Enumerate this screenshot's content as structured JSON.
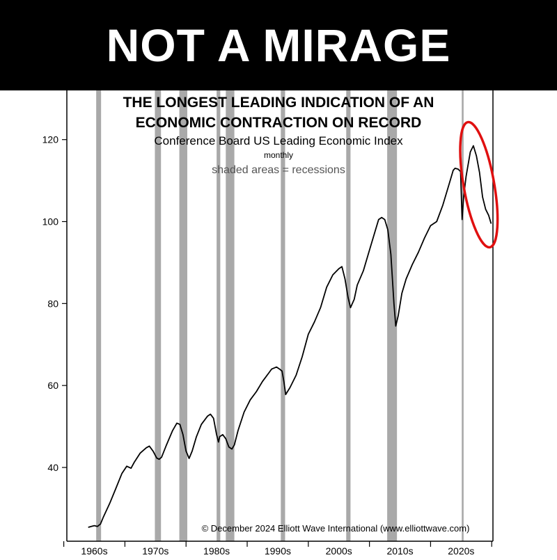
{
  "banner": {
    "text": "NOT A MIRAGE"
  },
  "colors": {
    "banner_bg": "#000000",
    "banner_text": "#ffffff",
    "line": "#000000",
    "recession_shading": "#a9a9a9",
    "highlight_circle": "#e01010"
  },
  "chart_data": {
    "type": "line",
    "title": "THE LONGEST LEADING INDICATION OF AN ECONOMIC CONTRACTION ON RECORD",
    "title_lines": [
      "THE LONGEST LEADING INDICATION OF AN",
      "ECONOMIC CONTRACTION ON RECORD"
    ],
    "subtitle": "Conference Board US Leading Economic Index",
    "frequency_note": "monthly",
    "shading_note": "shaded areas = recessions",
    "copyright": "© December 2024 Elliott Wave International (www.elliottwave.com)",
    "xlabel": "",
    "ylabel": "",
    "ylim": [
      22,
      132
    ],
    "xlim": [
      1955.5,
      2025.2
    ],
    "y_ticks": [
      40,
      60,
      80,
      100,
      120
    ],
    "x_tick_labels": [
      "1960s",
      "1970s",
      "1980s",
      "1990s",
      "2000s",
      "2010s",
      "2020s"
    ],
    "x_tick_positions": [
      1955,
      1965,
      1975,
      1985,
      1995,
      2005,
      2015,
      2025
    ],
    "grid": false,
    "legend": "none",
    "recessions": [
      [
        1960.3,
        1961.1
      ],
      [
        1969.9,
        1970.9
      ],
      [
        1973.9,
        1975.2
      ],
      [
        1980.0,
        1980.6
      ],
      [
        1981.5,
        1982.9
      ],
      [
        1990.5,
        1991.2
      ],
      [
        2001.2,
        2001.9
      ],
      [
        2007.9,
        2009.5
      ],
      [
        2020.1,
        2020.4
      ]
    ],
    "series": [
      {
        "x": [
          1959.0,
          1959.5,
          1960.0,
          1960.5,
          1961.0,
          1961.5,
          1962.5,
          1963.5,
          1964.5,
          1965.3,
          1966.0,
          1966.5,
          1967.5,
          1968.5,
          1969.0,
          1969.6,
          1970.2,
          1970.6,
          1971.0,
          1971.8,
          1972.8,
          1973.5,
          1974.0,
          1974.5,
          1975.0,
          1975.5,
          1976.0,
          1976.7,
          1977.5,
          1978.5,
          1979.0,
          1979.5,
          1980.0,
          1980.3,
          1980.5,
          1981.0,
          1981.5,
          1982.0,
          1982.5,
          1982.9,
          1983.5,
          1984.5,
          1985.5,
          1986.5,
          1987.5,
          1988.5,
          1989.0,
          1989.8,
          1990.3,
          1990.7,
          1991.0,
          1991.3,
          1992.0,
          1993.0,
          1994.0,
          1995.0,
          1996.0,
          1997.0,
          1998.0,
          1999.0,
          2000.0,
          2000.5,
          2001.0,
          2001.5,
          2001.9,
          2002.5,
          2003.0,
          2004.0,
          2005.0,
          2006.0,
          2006.5,
          2007.0,
          2007.5,
          2008.0,
          2008.5,
          2009.0,
          2009.3,
          2009.7,
          2010.3,
          2011.0,
          2012.0,
          2013.0,
          2014.0,
          2015.0,
          2016.0,
          2017.0,
          2018.0,
          2018.7,
          2019.0,
          2019.5,
          2019.9,
          2020.15,
          2020.4,
          2020.8,
          2021.5,
          2022.0,
          2022.5,
          2023.0,
          2023.5,
          2024.0,
          2024.5,
          2024.9
        ],
        "y": [
          25.4,
          25.6,
          25.8,
          25.6,
          26.2,
          28.0,
          31.2,
          34.8,
          38.5,
          40.3,
          39.8,
          41.2,
          43.5,
          44.8,
          45.2,
          44.0,
          42.3,
          42.0,
          42.5,
          45.5,
          49.0,
          50.8,
          50.5,
          48.0,
          44.0,
          42.2,
          44.0,
          47.5,
          50.5,
          52.5,
          53.0,
          52.0,
          48.0,
          46.2,
          47.5,
          48.0,
          47.0,
          45.0,
          44.5,
          45.5,
          49.0,
          53.5,
          56.5,
          58.5,
          61.0,
          63.0,
          64.0,
          64.5,
          64.0,
          63.5,
          61.0,
          57.8,
          59.5,
          62.5,
          67.0,
          72.5,
          75.5,
          79.0,
          84.0,
          87.0,
          88.5,
          89.0,
          86.0,
          81.5,
          79.0,
          81.0,
          84.5,
          88.0,
          93.0,
          98.0,
          100.5,
          101.0,
          100.5,
          98.0,
          92.0,
          80.0,
          74.5,
          77.0,
          82.5,
          86.0,
          89.5,
          92.5,
          96.0,
          99.0,
          100.0,
          104.0,
          109.0,
          112.5,
          113.0,
          112.8,
          112.2,
          100.5,
          106.0,
          111.0,
          117.0,
          118.5,
          116.0,
          112.0,
          106.0,
          103.0,
          101.5,
          99.5
        ]
      }
    ],
    "annotation": {
      "type": "circle",
      "color": "#e01010",
      "center": [
        2022.9,
        109
      ],
      "rx_years": 2.5,
      "ry_units": 15.5
    }
  }
}
